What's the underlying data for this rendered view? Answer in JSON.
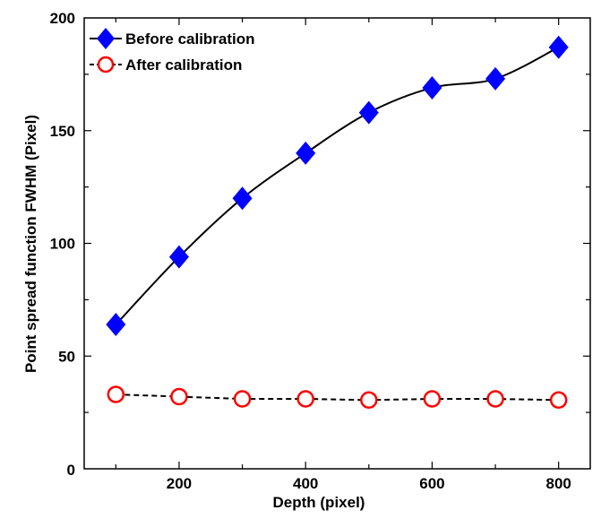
{
  "chart_data": {
    "type": "line",
    "title": "",
    "xlabel": "Depth (pixel)",
    "ylabel": "Point spread function FWHM (Pixel)",
    "xlim": [
      50,
      850
    ],
    "ylim": [
      0,
      200
    ],
    "xticks": [
      200,
      400,
      600,
      800
    ],
    "yticks": [
      50,
      100,
      150,
      200
    ],
    "y_origin_label": "0",
    "grid": false,
    "legend_position": "top-left",
    "x": [
      100,
      200,
      300,
      400,
      500,
      600,
      700,
      800
    ],
    "series": [
      {
        "name": "Before calibration",
        "values": [
          64,
          94,
          120,
          140,
          158,
          169,
          173,
          187
        ],
        "color": "#0000ff",
        "marker": "diamond",
        "line_style": "solid"
      },
      {
        "name": "After calibration",
        "values": [
          33,
          32,
          31,
          31,
          30.5,
          31,
          31,
          30.5
        ],
        "color": "#ff0000",
        "marker": "circle-open",
        "line_style": "dashed"
      }
    ]
  }
}
